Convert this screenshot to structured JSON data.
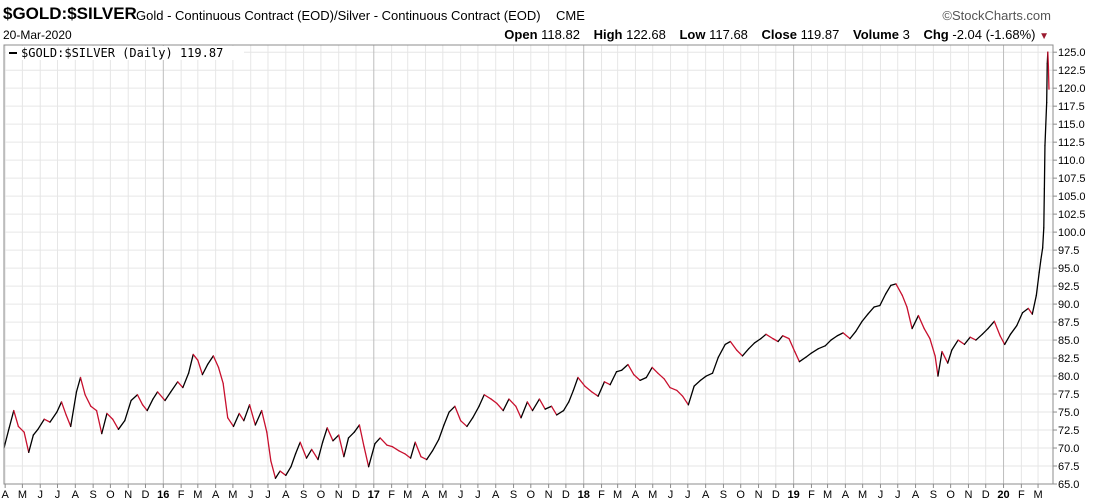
{
  "header": {
    "symbol": "$GOLD:$SILVER",
    "description": "Gold - Continuous Contract (EOD)/Silver - Continuous Contract (EOD)",
    "exchange": "CME",
    "brand": "StockCharts.com",
    "date": "20-Mar-2020",
    "ohlc": {
      "open_label": "Open",
      "open": "118.82",
      "high_label": "High",
      "high": "122.68",
      "low_label": "Low",
      "low": "117.68",
      "close_label": "Close",
      "close": "119.87",
      "volume_label": "Volume",
      "volume": "3",
      "chg_label": "Chg",
      "chg": "-2.04 (-1.68%)",
      "chg_direction": "down"
    }
  },
  "colors": {
    "up": "#000000",
    "down": "#c8102e",
    "grid": "#e6e6e6",
    "major_grid": "#bdbdbd",
    "frame": "#8c8c8c"
  },
  "chart_data": {
    "type": "line",
    "legend": "$GOLD:$SILVER (Daily) 119.87",
    "legend_placement": "top-left",
    "y_axis_side": "right",
    "ylim": [
      65,
      126
    ],
    "y_ticks": [
      "65.0",
      "67.5",
      "70.0",
      "72.5",
      "75.0",
      "77.5",
      "80.0",
      "82.5",
      "85.0",
      "87.5",
      "90.0",
      "92.5",
      "95.0",
      "97.5",
      "100.0",
      "102.5",
      "105.0",
      "107.5",
      "110.0",
      "112.5",
      "115.0",
      "117.5",
      "120.0",
      "122.5",
      "125.0"
    ],
    "x_range": [
      "2015-03-30",
      "2020-03-27"
    ],
    "x_ticks": [
      {
        "label": "A",
        "date": "2015-04-01"
      },
      {
        "label": "M",
        "date": "2015-05-01"
      },
      {
        "label": "J",
        "date": "2015-06-01"
      },
      {
        "label": "J",
        "date": "2015-07-01"
      },
      {
        "label": "A",
        "date": "2015-08-01"
      },
      {
        "label": "S",
        "date": "2015-09-01"
      },
      {
        "label": "O",
        "date": "2015-10-01"
      },
      {
        "label": "N",
        "date": "2015-11-01"
      },
      {
        "label": "D",
        "date": "2015-12-01"
      },
      {
        "label": "16",
        "date": "2016-01-01",
        "major": true
      },
      {
        "label": "F",
        "date": "2016-02-01"
      },
      {
        "label": "M",
        "date": "2016-03-01"
      },
      {
        "label": "A",
        "date": "2016-04-01"
      },
      {
        "label": "M",
        "date": "2016-05-01"
      },
      {
        "label": "J",
        "date": "2016-06-01"
      },
      {
        "label": "J",
        "date": "2016-07-01"
      },
      {
        "label": "A",
        "date": "2016-08-01"
      },
      {
        "label": "S",
        "date": "2016-09-01"
      },
      {
        "label": "O",
        "date": "2016-10-01"
      },
      {
        "label": "N",
        "date": "2016-11-01"
      },
      {
        "label": "D",
        "date": "2016-12-01"
      },
      {
        "label": "17",
        "date": "2017-01-01",
        "major": true
      },
      {
        "label": "F",
        "date": "2017-02-01"
      },
      {
        "label": "M",
        "date": "2017-03-01"
      },
      {
        "label": "A",
        "date": "2017-04-01"
      },
      {
        "label": "M",
        "date": "2017-05-01"
      },
      {
        "label": "J",
        "date": "2017-06-01"
      },
      {
        "label": "J",
        "date": "2017-07-01"
      },
      {
        "label": "A",
        "date": "2017-08-01"
      },
      {
        "label": "S",
        "date": "2017-09-01"
      },
      {
        "label": "O",
        "date": "2017-10-01"
      },
      {
        "label": "N",
        "date": "2017-11-01"
      },
      {
        "label": "D",
        "date": "2017-12-01"
      },
      {
        "label": "18",
        "date": "2018-01-01",
        "major": true
      },
      {
        "label": "F",
        "date": "2018-02-01"
      },
      {
        "label": "M",
        "date": "2018-03-01"
      },
      {
        "label": "A",
        "date": "2018-04-01"
      },
      {
        "label": "M",
        "date": "2018-05-01"
      },
      {
        "label": "J",
        "date": "2018-06-01"
      },
      {
        "label": "J",
        "date": "2018-07-01"
      },
      {
        "label": "A",
        "date": "2018-08-01"
      },
      {
        "label": "S",
        "date": "2018-09-01"
      },
      {
        "label": "O",
        "date": "2018-10-01"
      },
      {
        "label": "N",
        "date": "2018-11-01"
      },
      {
        "label": "D",
        "date": "2018-12-01"
      },
      {
        "label": "19",
        "date": "2019-01-01",
        "major": true
      },
      {
        "label": "F",
        "date": "2019-02-01"
      },
      {
        "label": "M",
        "date": "2019-03-01"
      },
      {
        "label": "A",
        "date": "2019-04-01"
      },
      {
        "label": "M",
        "date": "2019-05-01"
      },
      {
        "label": "J",
        "date": "2019-06-01"
      },
      {
        "label": "J",
        "date": "2019-07-01"
      },
      {
        "label": "A",
        "date": "2019-08-01"
      },
      {
        "label": "S",
        "date": "2019-09-01"
      },
      {
        "label": "O",
        "date": "2019-10-01"
      },
      {
        "label": "N",
        "date": "2019-11-01"
      },
      {
        "label": "D",
        "date": "2019-12-01"
      },
      {
        "label": "20",
        "date": "2020-01-01",
        "major": true
      },
      {
        "label": "F",
        "date": "2020-02-01"
      },
      {
        "label": "M",
        "date": "2020-03-01"
      }
    ],
    "series": [
      {
        "points": [
          [
            "2015-03-30",
            70.0
          ],
          [
            "2015-04-08",
            72.8
          ],
          [
            "2015-04-16",
            75.2
          ],
          [
            "2015-04-24",
            73.0
          ],
          [
            "2015-05-04",
            72.2
          ],
          [
            "2015-05-12",
            69.4
          ],
          [
            "2015-05-20",
            71.8
          ],
          [
            "2015-05-28",
            72.6
          ],
          [
            "2015-06-08",
            74.0
          ],
          [
            "2015-06-18",
            73.6
          ],
          [
            "2015-06-30",
            75.0
          ],
          [
            "2015-07-08",
            76.4
          ],
          [
            "2015-07-16",
            74.6
          ],
          [
            "2015-07-24",
            73.0
          ],
          [
            "2015-08-03",
            77.8
          ],
          [
            "2015-08-10",
            79.8
          ],
          [
            "2015-08-18",
            77.4
          ],
          [
            "2015-08-28",
            75.8
          ],
          [
            "2015-09-07",
            75.2
          ],
          [
            "2015-09-16",
            72.0
          ],
          [
            "2015-09-25",
            74.8
          ],
          [
            "2015-10-05",
            74.0
          ],
          [
            "2015-10-15",
            72.6
          ],
          [
            "2015-10-26",
            73.8
          ],
          [
            "2015-11-06",
            76.6
          ],
          [
            "2015-11-17",
            77.4
          ],
          [
            "2015-11-26",
            76.0
          ],
          [
            "2015-12-04",
            75.2
          ],
          [
            "2015-12-14",
            76.8
          ],
          [
            "2015-12-22",
            77.8
          ],
          [
            "2016-01-04",
            76.6
          ],
          [
            "2016-01-14",
            77.8
          ],
          [
            "2016-01-26",
            79.2
          ],
          [
            "2016-02-04",
            78.4
          ],
          [
            "2016-02-14",
            80.4
          ],
          [
            "2016-02-22",
            83.0
          ],
          [
            "2016-03-01",
            82.2
          ],
          [
            "2016-03-09",
            80.2
          ],
          [
            "2016-03-18",
            81.6
          ],
          [
            "2016-03-28",
            82.8
          ],
          [
            "2016-04-06",
            81.2
          ],
          [
            "2016-04-14",
            79.0
          ],
          [
            "2016-04-22",
            74.2
          ],
          [
            "2016-05-02",
            73.0
          ],
          [
            "2016-05-12",
            74.8
          ],
          [
            "2016-05-20",
            73.8
          ],
          [
            "2016-05-30",
            76.0
          ],
          [
            "2016-06-09",
            73.2
          ],
          [
            "2016-06-20",
            75.2
          ],
          [
            "2016-06-29",
            72.2
          ],
          [
            "2016-07-06",
            68.2
          ],
          [
            "2016-07-14",
            65.8
          ],
          [
            "2016-07-22",
            66.8
          ],
          [
            "2016-08-01",
            66.2
          ],
          [
            "2016-08-10",
            67.4
          ],
          [
            "2016-08-18",
            69.2
          ],
          [
            "2016-08-26",
            70.8
          ],
          [
            "2016-09-06",
            68.6
          ],
          [
            "2016-09-15",
            69.8
          ],
          [
            "2016-09-26",
            68.4
          ],
          [
            "2016-10-04",
            70.8
          ],
          [
            "2016-10-12",
            72.8
          ],
          [
            "2016-10-22",
            71.0
          ],
          [
            "2016-11-01",
            71.8
          ],
          [
            "2016-11-10",
            68.8
          ],
          [
            "2016-11-18",
            71.4
          ],
          [
            "2016-11-28",
            72.2
          ],
          [
            "2016-12-07",
            73.2
          ],
          [
            "2016-12-15",
            70.2
          ],
          [
            "2016-12-23",
            67.4
          ],
          [
            "2017-01-03",
            70.6
          ],
          [
            "2017-01-12",
            71.4
          ],
          [
            "2017-01-24",
            70.4
          ],
          [
            "2017-02-02",
            70.2
          ],
          [
            "2017-02-14",
            69.6
          ],
          [
            "2017-02-24",
            69.2
          ],
          [
            "2017-03-06",
            68.6
          ],
          [
            "2017-03-14",
            70.8
          ],
          [
            "2017-03-24",
            68.8
          ],
          [
            "2017-04-03",
            68.4
          ],
          [
            "2017-04-13",
            69.6
          ],
          [
            "2017-04-24",
            71.2
          ],
          [
            "2017-05-03",
            73.2
          ],
          [
            "2017-05-12",
            75.0
          ],
          [
            "2017-05-22",
            75.8
          ],
          [
            "2017-06-01",
            73.8
          ],
          [
            "2017-06-12",
            73.0
          ],
          [
            "2017-06-22",
            74.2
          ],
          [
            "2017-07-03",
            75.8
          ],
          [
            "2017-07-12",
            77.4
          ],
          [
            "2017-07-24",
            76.8
          ],
          [
            "2017-08-03",
            76.2
          ],
          [
            "2017-08-14",
            75.2
          ],
          [
            "2017-08-24",
            76.8
          ],
          [
            "2017-09-05",
            75.8
          ],
          [
            "2017-09-14",
            74.2
          ],
          [
            "2017-09-25",
            76.4
          ],
          [
            "2017-10-04",
            75.2
          ],
          [
            "2017-10-16",
            76.8
          ],
          [
            "2017-10-26",
            75.4
          ],
          [
            "2017-11-06",
            75.8
          ],
          [
            "2017-11-15",
            74.6
          ],
          [
            "2017-11-27",
            75.2
          ],
          [
            "2017-12-06",
            76.4
          ],
          [
            "2017-12-14",
            78.0
          ],
          [
            "2017-12-22",
            79.8
          ],
          [
            "2018-01-03",
            78.6
          ],
          [
            "2018-01-15",
            77.8
          ],
          [
            "2018-01-26",
            77.2
          ],
          [
            "2018-02-06",
            79.2
          ],
          [
            "2018-02-16",
            78.8
          ],
          [
            "2018-02-27",
            80.6
          ],
          [
            "2018-03-08",
            80.8
          ],
          [
            "2018-03-19",
            81.6
          ],
          [
            "2018-03-29",
            80.2
          ],
          [
            "2018-04-09",
            79.4
          ],
          [
            "2018-04-20",
            79.8
          ],
          [
            "2018-04-30",
            81.2
          ],
          [
            "2018-05-10",
            80.4
          ],
          [
            "2018-05-21",
            79.6
          ],
          [
            "2018-05-31",
            78.4
          ],
          [
            "2018-06-12",
            78.0
          ],
          [
            "2018-06-22",
            77.2
          ],
          [
            "2018-07-02",
            76.0
          ],
          [
            "2018-07-12",
            78.6
          ],
          [
            "2018-07-23",
            79.4
          ],
          [
            "2018-08-02",
            80.0
          ],
          [
            "2018-08-13",
            80.4
          ],
          [
            "2018-08-23",
            82.6
          ],
          [
            "2018-09-04",
            84.4
          ],
          [
            "2018-09-13",
            84.8
          ],
          [
            "2018-09-24",
            83.6
          ],
          [
            "2018-10-04",
            82.8
          ],
          [
            "2018-10-15",
            83.8
          ],
          [
            "2018-10-25",
            84.6
          ],
          [
            "2018-11-05",
            85.2
          ],
          [
            "2018-11-14",
            85.8
          ],
          [
            "2018-11-26",
            85.2
          ],
          [
            "2018-12-05",
            84.8
          ],
          [
            "2018-12-13",
            85.6
          ],
          [
            "2018-12-24",
            85.2
          ],
          [
            "2019-01-03",
            83.4
          ],
          [
            "2019-01-11",
            82.0
          ],
          [
            "2019-01-22",
            82.6
          ],
          [
            "2019-02-01",
            83.2
          ],
          [
            "2019-02-13",
            83.8
          ],
          [
            "2019-02-25",
            84.2
          ],
          [
            "2019-03-07",
            85.0
          ],
          [
            "2019-03-18",
            85.6
          ],
          [
            "2019-03-28",
            86.0
          ],
          [
            "2019-04-09",
            85.2
          ],
          [
            "2019-04-19",
            86.2
          ],
          [
            "2019-04-30",
            87.6
          ],
          [
            "2019-05-10",
            88.6
          ],
          [
            "2019-05-21",
            89.6
          ],
          [
            "2019-05-31",
            89.8
          ],
          [
            "2019-06-10",
            91.4
          ],
          [
            "2019-06-19",
            92.6
          ],
          [
            "2019-06-28",
            92.8
          ],
          [
            "2019-07-09",
            91.2
          ],
          [
            "2019-07-17",
            89.6
          ],
          [
            "2019-07-26",
            86.6
          ],
          [
            "2019-08-06",
            88.4
          ],
          [
            "2019-08-16",
            86.6
          ],
          [
            "2019-08-26",
            85.2
          ],
          [
            "2019-09-04",
            82.8
          ],
          [
            "2019-09-09",
            80.0
          ],
          [
            "2019-09-16",
            83.4
          ],
          [
            "2019-09-26",
            81.8
          ],
          [
            "2019-10-03",
            83.6
          ],
          [
            "2019-10-14",
            85.0
          ],
          [
            "2019-10-25",
            84.4
          ],
          [
            "2019-11-04",
            85.4
          ],
          [
            "2019-11-14",
            85.0
          ],
          [
            "2019-11-25",
            85.8
          ],
          [
            "2019-12-05",
            86.6
          ],
          [
            "2019-12-16",
            87.6
          ],
          [
            "2019-12-26",
            85.6
          ],
          [
            "2020-01-03",
            84.4
          ],
          [
            "2020-01-13",
            85.8
          ],
          [
            "2020-01-24",
            87.0
          ],
          [
            "2020-02-03",
            88.8
          ],
          [
            "2020-02-13",
            89.4
          ],
          [
            "2020-02-20",
            88.6
          ],
          [
            "2020-02-27",
            91.2
          ],
          [
            "2020-03-03",
            94.4
          ],
          [
            "2020-03-06",
            96.2
          ],
          [
            "2020-03-09",
            97.8
          ],
          [
            "2020-03-11",
            100.6
          ],
          [
            "2020-03-12",
            106.0
          ],
          [
            "2020-03-13",
            112.0
          ],
          [
            "2020-03-16",
            118.0
          ],
          [
            "2020-03-17",
            123.4
          ],
          [
            "2020-03-18",
            125.0
          ],
          [
            "2020-03-19",
            123.0
          ],
          [
            "2020-03-20",
            119.87
          ]
        ]
      }
    ]
  }
}
